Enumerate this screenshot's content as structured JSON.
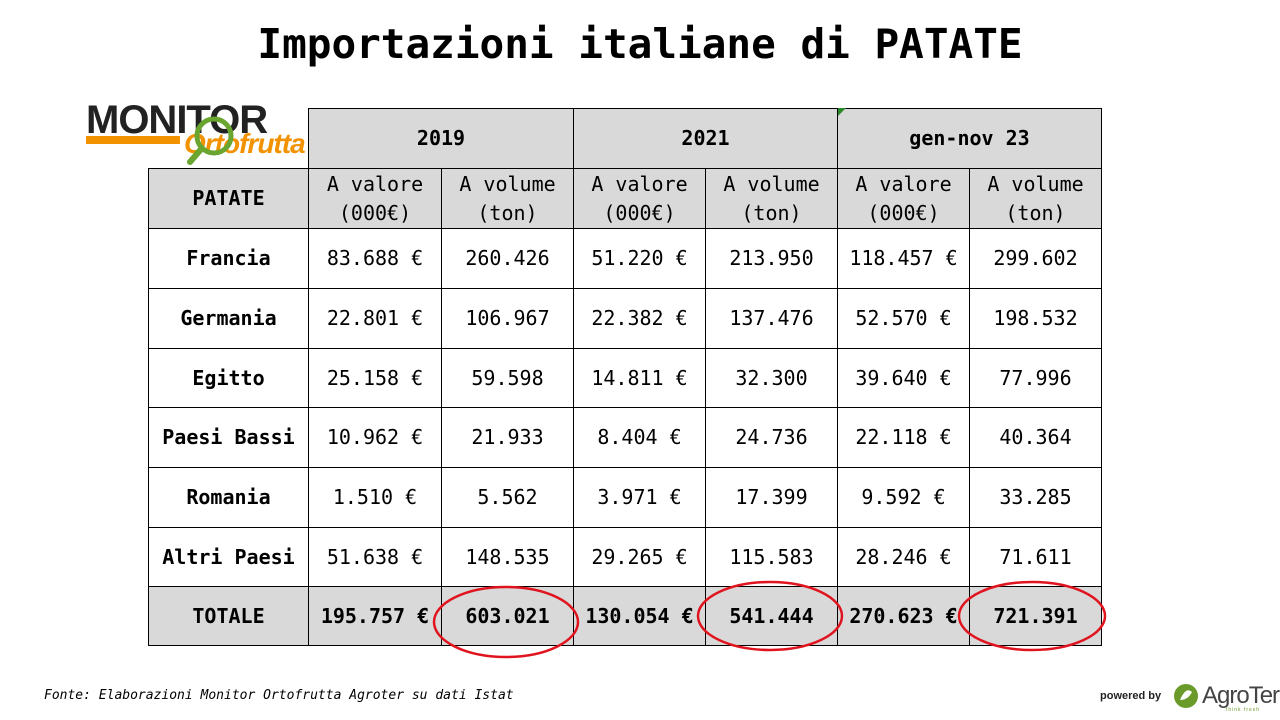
{
  "title": "Importazioni italiane di PATATE",
  "logo": {
    "line1": "MONITOR",
    "line2": "Ortofrutta"
  },
  "table": {
    "corner": "PATATE",
    "periods": [
      "2019",
      "2021",
      "gen-nov 23"
    ],
    "subheaders": [
      "A valore\n(000€)",
      "A volume\n(ton)",
      "A valore\n(000€)",
      "A volume\n(ton)",
      "A valore\n(000€)",
      "A volume\n(ton)"
    ],
    "rows": [
      {
        "country": "Francia",
        "values": [
          "83.688 €",
          "260.426",
          "51.220 €",
          "213.950",
          "118.457 €",
          "299.602"
        ]
      },
      {
        "country": "Germania",
        "values": [
          "22.801 €",
          "106.967",
          "22.382 €",
          "137.476",
          "52.570 €",
          "198.532"
        ]
      },
      {
        "country": "Egitto",
        "values": [
          "25.158 €",
          "59.598",
          "14.811 €",
          "32.300",
          "39.640 €",
          "77.996"
        ]
      },
      {
        "country": "Paesi Bassi",
        "values": [
          "10.962 €",
          "21.933",
          "8.404 €",
          "24.736",
          "22.118 €",
          "40.364"
        ]
      },
      {
        "country": "Romania",
        "values": [
          "1.510 €",
          "5.562",
          "3.971 €",
          "17.399",
          "9.592 €",
          "33.285"
        ]
      },
      {
        "country": "Altri Paesi",
        "values": [
          "51.638 €",
          "148.535",
          "29.265 €",
          "115.583",
          "28.246 €",
          "71.611"
        ]
      }
    ],
    "total": {
      "label": "TOTALE",
      "values": [
        "195.757 €",
        "603.021",
        "130.054 €",
        "541.444",
        "270.623 €",
        "721.391"
      ]
    }
  },
  "source": "Fonte: Elaborazioni Monitor Ortofrutta Agroter su dati Istat",
  "powered_by": "powered by",
  "brand": {
    "name": "AgroTer",
    "tagline": "think fresh"
  },
  "colors": {
    "header_bg": "#d9d9d9",
    "circle": "#e0141e",
    "logo_orange": "#f39200",
    "brand_green": "#6a9a2a"
  }
}
